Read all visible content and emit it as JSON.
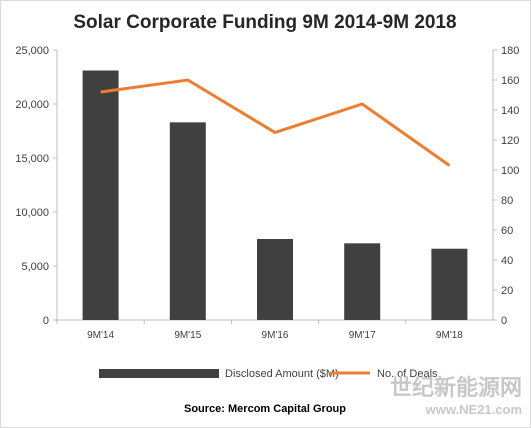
{
  "chart_data": {
    "type": "bar+line",
    "title": "Solar Corporate Funding 9M 2014-9M 2018",
    "categories": [
      "9M'14",
      "9M'15",
      "9M'16",
      "9M'17",
      "9M'18"
    ],
    "series": [
      {
        "name": "Disclosed Amount ($M)",
        "type": "bar",
        "axis": "left",
        "color": "#404040",
        "values": [
          23100,
          18300,
          7500,
          7100,
          6600
        ]
      },
      {
        "name": "No. of Deals",
        "type": "line",
        "axis": "right",
        "color": "#ed7d31",
        "values": [
          152,
          160,
          125,
          144,
          103
        ]
      }
    ],
    "y_left": {
      "min": 0,
      "max": 25000,
      "step": 5000,
      "ticks": [
        "0",
        "5,000",
        "10,000",
        "15,000",
        "20,000",
        "25,000"
      ]
    },
    "y_right": {
      "min": 0,
      "max": 180,
      "step": 20,
      "ticks": [
        "0",
        "20",
        "40",
        "60",
        "80",
        "100",
        "120",
        "140",
        "160",
        "180"
      ]
    },
    "grid": false,
    "legend_position": "bottom",
    "source": "Source: Mercom Capital Group"
  },
  "watermark": {
    "line1": "世纪新能源网",
    "line2": "www.NE21.com"
  }
}
